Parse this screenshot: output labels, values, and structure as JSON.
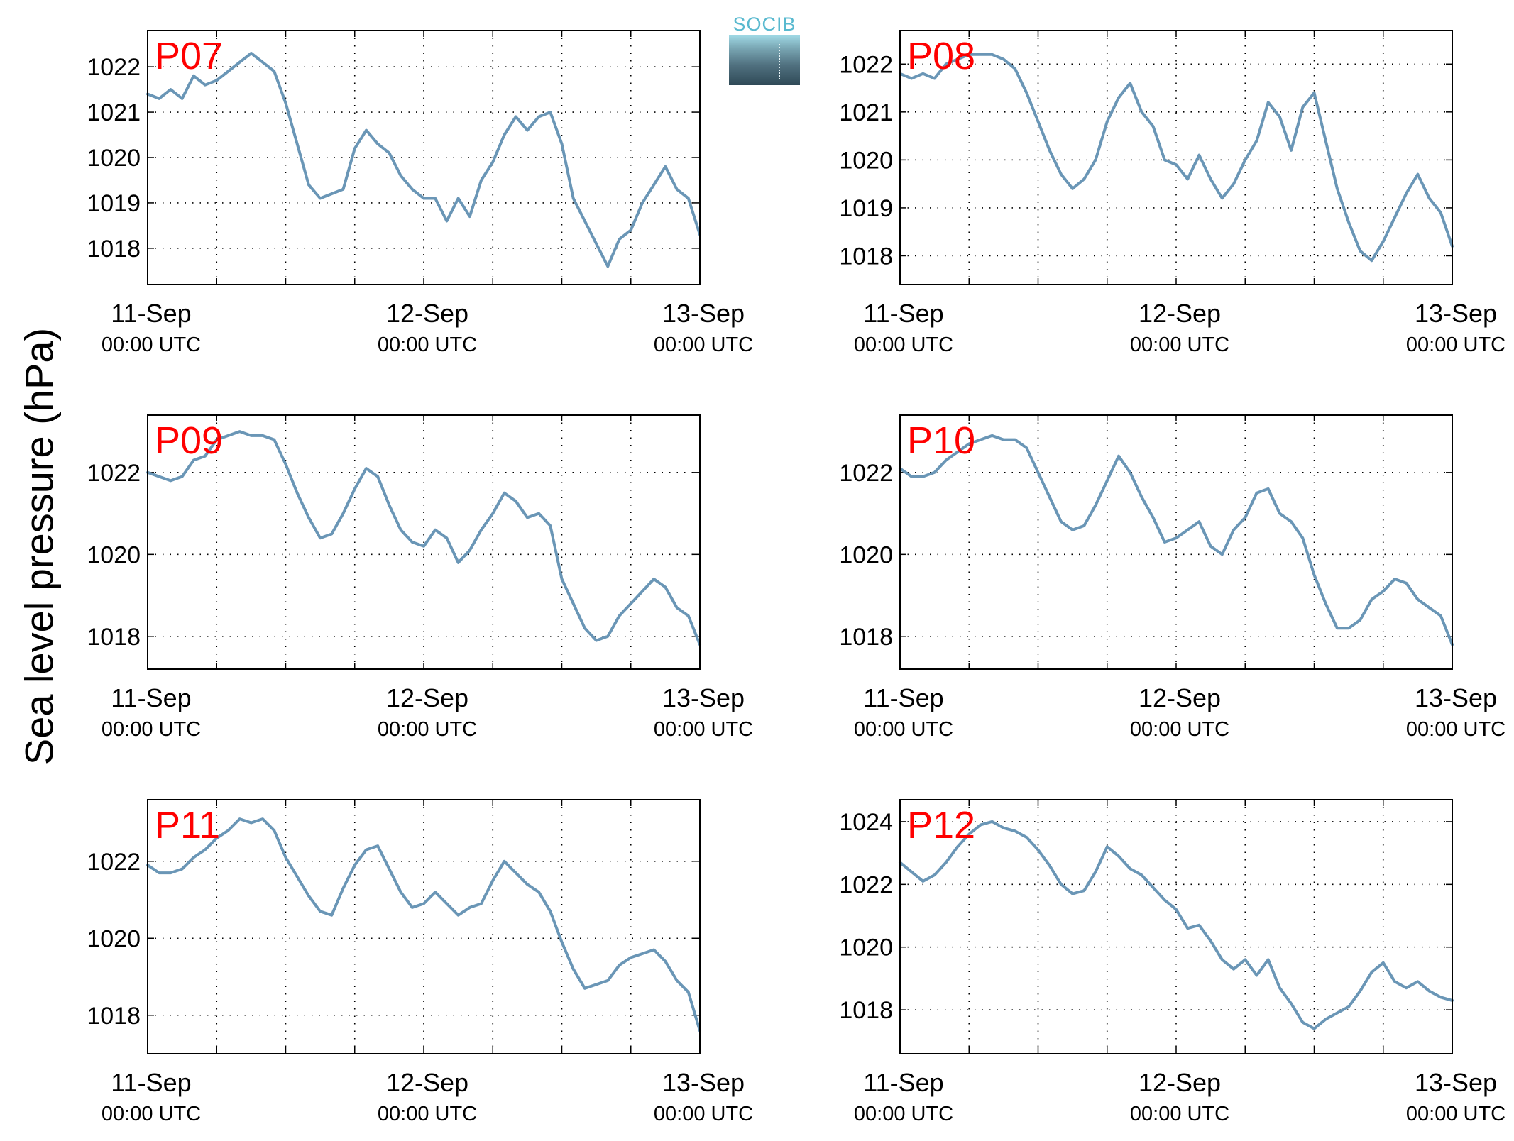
{
  "figure": {
    "ylabel": "Sea level pressure (hPa)",
    "logo_text": "SOCIB",
    "line_color": "#6a96b6",
    "label_color": "#ff0000"
  },
  "chart_data": [
    {
      "type": "line",
      "title": "P07",
      "xticks_date": [
        "11-Sep",
        "12-Sep",
        "13-Sep"
      ],
      "xticks_time": [
        "00:00 UTC",
        "00:00 UTC",
        "00:00 UTC"
      ],
      "xlim_hours": [
        0,
        48
      ],
      "ylim": [
        1017.2,
        1022.8
      ],
      "yticks": [
        1018,
        1019,
        1020,
        1021,
        1022
      ],
      "grid": true,
      "series": [
        {
          "x_hours": [
            0,
            1,
            2,
            3,
            4,
            5,
            6,
            7,
            8,
            9,
            10,
            11,
            12,
            13,
            14,
            15,
            16,
            17,
            18,
            19,
            20,
            21,
            22,
            23,
            24,
            25,
            26,
            27,
            28,
            29,
            30,
            31,
            32,
            33,
            34,
            35,
            36,
            37,
            38,
            39,
            40,
            41,
            42,
            43,
            44,
            45,
            46,
            47,
            48
          ],
          "values": [
            1021.4,
            1021.3,
            1021.5,
            1021.3,
            1021.8,
            1021.6,
            1021.7,
            1021.9,
            1022.1,
            1022.3,
            1022.1,
            1021.9,
            1021.2,
            1020.3,
            1019.4,
            1019.1,
            1019.2,
            1019.3,
            1020.2,
            1020.6,
            1020.3,
            1020.1,
            1019.6,
            1019.3,
            1019.1,
            1019.1,
            1018.6,
            1019.1,
            1018.7,
            1019.5,
            1019.9,
            1020.5,
            1020.9,
            1020.6,
            1020.9,
            1021.0,
            1020.3,
            1019.1,
            1018.6,
            1018.1,
            1017.6,
            1018.2,
            1018.4,
            1019.0,
            1019.4,
            1019.8,
            1019.3,
            1019.1,
            1018.3
          ]
        }
      ]
    },
    {
      "type": "line",
      "title": "P08",
      "xticks_date": [
        "11-Sep",
        "12-Sep",
        "13-Sep"
      ],
      "xticks_time": [
        "00:00 UTC",
        "00:00 UTC",
        "00:00 UTC"
      ],
      "xlim_hours": [
        0,
        48
      ],
      "ylim": [
        1017.4,
        1022.7
      ],
      "yticks": [
        1018,
        1019,
        1020,
        1021,
        1022
      ],
      "grid": true,
      "series": [
        {
          "x_hours": [
            0,
            1,
            2,
            3,
            4,
            5,
            6,
            7,
            8,
            9,
            10,
            11,
            12,
            13,
            14,
            15,
            16,
            17,
            18,
            19,
            20,
            21,
            22,
            23,
            24,
            25,
            26,
            27,
            28,
            29,
            30,
            31,
            32,
            33,
            34,
            35,
            36,
            37,
            38,
            39,
            40,
            41,
            42,
            43,
            44,
            45,
            46,
            47,
            48
          ],
          "values": [
            1021.8,
            1021.7,
            1021.8,
            1021.7,
            1022.0,
            1022.1,
            1022.2,
            1022.2,
            1022.2,
            1022.1,
            1021.9,
            1021.4,
            1020.8,
            1020.2,
            1019.7,
            1019.4,
            1019.6,
            1020.0,
            1020.8,
            1021.3,
            1021.6,
            1021.0,
            1020.7,
            1020.0,
            1019.9,
            1019.6,
            1020.1,
            1019.6,
            1019.2,
            1019.5,
            1020.0,
            1020.4,
            1021.2,
            1020.9,
            1020.2,
            1021.1,
            1021.4,
            1020.4,
            1019.4,
            1018.7,
            1018.1,
            1017.9,
            1018.3,
            1018.8,
            1019.3,
            1019.7,
            1019.2,
            1018.9,
            1018.2
          ]
        }
      ]
    },
    {
      "type": "line",
      "title": "P09",
      "xticks_date": [
        "11-Sep",
        "12-Sep",
        "13-Sep"
      ],
      "xticks_time": [
        "00:00 UTC",
        "00:00 UTC",
        "00:00 UTC"
      ],
      "xlim_hours": [
        0,
        48
      ],
      "ylim": [
        1017.2,
        1023.4
      ],
      "yticks": [
        1018,
        1020,
        1022
      ],
      "grid": true,
      "series": [
        {
          "x_hours": [
            0,
            1,
            2,
            3,
            4,
            5,
            6,
            7,
            8,
            9,
            10,
            11,
            12,
            13,
            14,
            15,
            16,
            17,
            18,
            19,
            20,
            21,
            22,
            23,
            24,
            25,
            26,
            27,
            28,
            29,
            30,
            31,
            32,
            33,
            34,
            35,
            36,
            37,
            38,
            39,
            40,
            41,
            42,
            43,
            44,
            45,
            46,
            47,
            48
          ],
          "values": [
            1022.0,
            1021.9,
            1021.8,
            1021.9,
            1022.3,
            1022.4,
            1022.8,
            1022.9,
            1023.0,
            1022.9,
            1022.9,
            1022.8,
            1022.2,
            1021.5,
            1020.9,
            1020.4,
            1020.5,
            1021.0,
            1021.6,
            1022.1,
            1021.9,
            1021.2,
            1020.6,
            1020.3,
            1020.2,
            1020.6,
            1020.4,
            1019.8,
            1020.1,
            1020.6,
            1021.0,
            1021.5,
            1021.3,
            1020.9,
            1021.0,
            1020.7,
            1019.4,
            1018.8,
            1018.2,
            1017.9,
            1018.0,
            1018.5,
            1018.8,
            1019.1,
            1019.4,
            1019.2,
            1018.7,
            1018.5,
            1017.8
          ]
        }
      ]
    },
    {
      "type": "line",
      "title": "P10",
      "xticks_date": [
        "11-Sep",
        "12-Sep",
        "13-Sep"
      ],
      "xticks_time": [
        "00:00 UTC",
        "00:00 UTC",
        "00:00 UTC"
      ],
      "xlim_hours": [
        0,
        48
      ],
      "ylim": [
        1017.2,
        1023.4
      ],
      "yticks": [
        1018,
        1020,
        1022
      ],
      "grid": true,
      "series": [
        {
          "x_hours": [
            0,
            1,
            2,
            3,
            4,
            5,
            6,
            7,
            8,
            9,
            10,
            11,
            12,
            13,
            14,
            15,
            16,
            17,
            18,
            19,
            20,
            21,
            22,
            23,
            24,
            25,
            26,
            27,
            28,
            29,
            30,
            31,
            32,
            33,
            34,
            35,
            36,
            37,
            38,
            39,
            40,
            41,
            42,
            43,
            44,
            45,
            46,
            47,
            48
          ],
          "values": [
            1022.1,
            1021.9,
            1021.9,
            1022.0,
            1022.3,
            1022.5,
            1022.7,
            1022.8,
            1022.9,
            1022.8,
            1022.8,
            1022.6,
            1022.0,
            1021.4,
            1020.8,
            1020.6,
            1020.7,
            1021.2,
            1021.8,
            1022.4,
            1022.0,
            1021.4,
            1020.9,
            1020.3,
            1020.4,
            1020.6,
            1020.8,
            1020.2,
            1020.0,
            1020.6,
            1020.9,
            1021.5,
            1021.6,
            1021.0,
            1020.8,
            1020.4,
            1019.5,
            1018.8,
            1018.2,
            1018.2,
            1018.4,
            1018.9,
            1019.1,
            1019.4,
            1019.3,
            1018.9,
            1018.7,
            1018.5,
            1017.8
          ]
        }
      ]
    },
    {
      "type": "line",
      "title": "P11",
      "xticks_date": [
        "11-Sep",
        "12-Sep",
        "13-Sep"
      ],
      "xticks_time": [
        "00:00 UTC",
        "00:00 UTC",
        "00:00 UTC"
      ],
      "xlim_hours": [
        0,
        48
      ],
      "ylim": [
        1017.0,
        1023.6
      ],
      "yticks": [
        1018,
        1020,
        1022
      ],
      "grid": true,
      "series": [
        {
          "x_hours": [
            0,
            1,
            2,
            3,
            4,
            5,
            6,
            7,
            8,
            9,
            10,
            11,
            12,
            13,
            14,
            15,
            16,
            17,
            18,
            19,
            20,
            21,
            22,
            23,
            24,
            25,
            26,
            27,
            28,
            29,
            30,
            31,
            32,
            33,
            34,
            35,
            36,
            37,
            38,
            39,
            40,
            41,
            42,
            43,
            44,
            45,
            46,
            47,
            48
          ],
          "values": [
            1021.9,
            1021.7,
            1021.7,
            1021.8,
            1022.1,
            1022.3,
            1022.6,
            1022.8,
            1023.1,
            1023.0,
            1023.1,
            1022.8,
            1022.1,
            1021.6,
            1021.1,
            1020.7,
            1020.6,
            1021.3,
            1021.9,
            1022.3,
            1022.4,
            1021.8,
            1021.2,
            1020.8,
            1020.9,
            1021.2,
            1020.9,
            1020.6,
            1020.8,
            1020.9,
            1021.5,
            1022.0,
            1021.7,
            1021.4,
            1021.2,
            1020.7,
            1019.9,
            1019.2,
            1018.7,
            1018.8,
            1018.9,
            1019.3,
            1019.5,
            1019.6,
            1019.7,
            1019.4,
            1018.9,
            1018.6,
            1017.6
          ]
        }
      ]
    },
    {
      "type": "line",
      "title": "P12",
      "xticks_date": [
        "11-Sep",
        "12-Sep",
        "13-Sep"
      ],
      "xticks_time": [
        "00:00 UTC",
        "00:00 UTC",
        "00:00 UTC"
      ],
      "xlim_hours": [
        0,
        48
      ],
      "ylim": [
        1016.6,
        1024.7
      ],
      "yticks": [
        1018,
        1020,
        1022,
        1024
      ],
      "grid": true,
      "series": [
        {
          "x_hours": [
            0,
            1,
            2,
            3,
            4,
            5,
            6,
            7,
            8,
            9,
            10,
            11,
            12,
            13,
            14,
            15,
            16,
            17,
            18,
            19,
            20,
            21,
            22,
            23,
            24,
            25,
            26,
            27,
            28,
            29,
            30,
            31,
            32,
            33,
            34,
            35,
            36,
            37,
            38,
            39,
            40,
            41,
            42,
            43,
            44,
            45,
            46,
            47,
            48
          ],
          "values": [
            1022.7,
            1022.4,
            1022.1,
            1022.3,
            1022.7,
            1023.2,
            1023.6,
            1023.9,
            1024.0,
            1023.8,
            1023.7,
            1023.5,
            1023.1,
            1022.6,
            1022.0,
            1021.7,
            1021.8,
            1022.4,
            1023.2,
            1022.9,
            1022.5,
            1022.3,
            1021.9,
            1021.5,
            1021.2,
            1020.6,
            1020.7,
            1020.2,
            1019.6,
            1019.3,
            1019.6,
            1019.1,
            1019.6,
            1018.7,
            1018.2,
            1017.6,
            1017.4,
            1017.7,
            1017.9,
            1018.1,
            1018.6,
            1019.2,
            1019.5,
            1018.9,
            1018.7,
            1018.9,
            1018.6,
            1018.4,
            1018.3
          ]
        }
      ]
    }
  ]
}
